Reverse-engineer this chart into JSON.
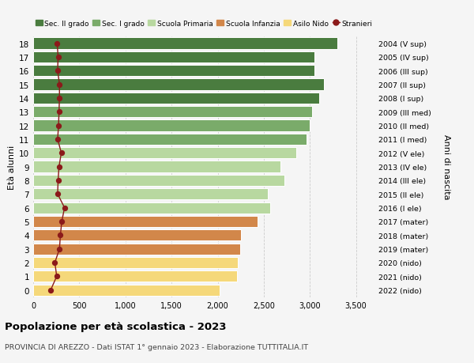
{
  "ages": [
    18,
    17,
    16,
    15,
    14,
    13,
    12,
    11,
    10,
    9,
    8,
    7,
    6,
    5,
    4,
    3,
    2,
    1,
    0
  ],
  "bar_values": [
    3300,
    3050,
    3050,
    3150,
    3100,
    3020,
    3000,
    2960,
    2850,
    2680,
    2720,
    2540,
    2570,
    2430,
    2250,
    2240,
    2220,
    2210,
    2020
  ],
  "stranieri_values": [
    260,
    270,
    265,
    285,
    285,
    280,
    275,
    265,
    305,
    280,
    270,
    265,
    340,
    310,
    295,
    285,
    235,
    255,
    190
  ],
  "right_labels": [
    "2004 (V sup)",
    "2005 (IV sup)",
    "2006 (III sup)",
    "2007 (II sup)",
    "2008 (I sup)",
    "2009 (III med)",
    "2010 (II med)",
    "2011 (I med)",
    "2012 (V ele)",
    "2013 (IV ele)",
    "2014 (III ele)",
    "2015 (II ele)",
    "2016 (I ele)",
    "2017 (mater)",
    "2018 (mater)",
    "2019 (mater)",
    "2020 (nido)",
    "2021 (nido)",
    "2022 (nido)"
  ],
  "bar_colors": [
    "#4a7c3f",
    "#4a7c3f",
    "#4a7c3f",
    "#4a7c3f",
    "#4a7c3f",
    "#7aab6a",
    "#7aab6a",
    "#7aab6a",
    "#b8d8a0",
    "#b8d8a0",
    "#b8d8a0",
    "#b8d8a0",
    "#b8d8a0",
    "#d2874a",
    "#d2874a",
    "#d2874a",
    "#f5d87a",
    "#f5d87a",
    "#f5d87a"
  ],
  "legend_labels": [
    "Sec. II grado",
    "Sec. I grado",
    "Scuola Primaria",
    "Scuola Infanzia",
    "Asilo Nido",
    "Stranieri"
  ],
  "legend_colors": [
    "#4a7c3f",
    "#7aab6a",
    "#b8d8a0",
    "#d2874a",
    "#f5d87a",
    "#8b1a1a"
  ],
  "xlabel_values": [
    0,
    500,
    1000,
    1500,
    2000,
    2500,
    3000,
    3500
  ],
  "xlabel_labels": [
    "0",
    "500",
    "1,000",
    "1,500",
    "2,000",
    "2,500",
    "3,000",
    "3,500"
  ],
  "ylabel": "Età alunni",
  "right_ylabel": "Anni di nascita",
  "title": "Popolazione per età scolastica - 2023",
  "subtitle": "PROVINCIA DI AREZZO - Dati ISTAT 1° gennaio 2023 - Elaborazione TUTTITALIA.IT",
  "xlim": [
    0,
    3700
  ],
  "ylim_min": -0.55,
  "ylim_max": 18.55,
  "background_color": "#f5f5f5",
  "bar_height": 0.82,
  "stranieri_color": "#8b1a1a"
}
